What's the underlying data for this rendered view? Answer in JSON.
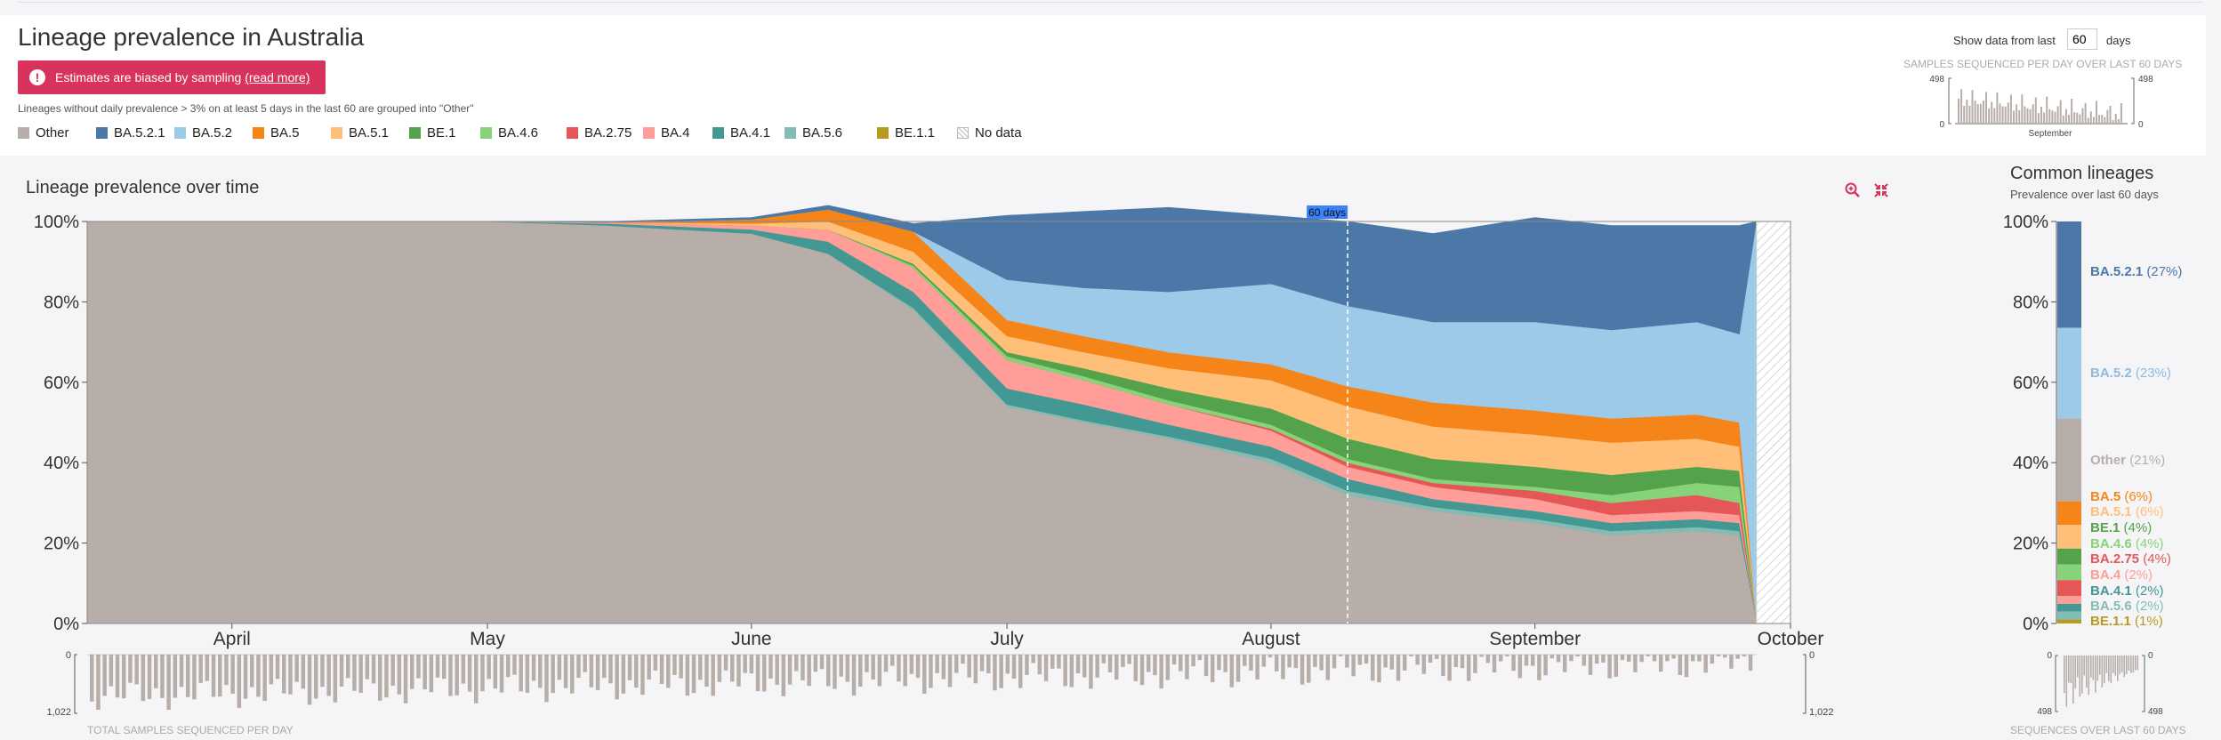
{
  "header": {
    "title": "Lineage prevalence in Australia",
    "bias_text": "Estimates are biased by sampling",
    "bias_link": "(read more)",
    "grouping_note": "Lineages without daily prevalence > 3% on at least 5 days in the last 60 are grouped into \"Other\"",
    "window_prefix": "Show data from last",
    "window_value": "60",
    "window_suffix": "days",
    "spark_title": "SAMPLES SEQUENCED PER DAY OVER LAST 60 DAYS",
    "spark_month": "September",
    "spark_max": "498",
    "spark_min": "0"
  },
  "legend": [
    {
      "label": "Other",
      "color": "#b8aea9"
    },
    {
      "label": "BA.5.2.1",
      "color": "#4c78a8"
    },
    {
      "label": "BA.5.2",
      "color": "#9ecae9"
    },
    {
      "label": "BA.5",
      "color": "#f58518"
    },
    {
      "label": "BA.5.1",
      "color": "#ffbf79"
    },
    {
      "label": "BE.1",
      "color": "#54a24b"
    },
    {
      "label": "BA.4.6",
      "color": "#88d27a"
    },
    {
      "label": "BA.2.75",
      "color": "#e45756"
    },
    {
      "label": "BA.4",
      "color": "#ff9d98"
    },
    {
      "label": "BA.4.1",
      "color": "#439894"
    },
    {
      "label": "BA.5.6",
      "color": "#83bcb6"
    },
    {
      "label": "BE.1.1",
      "color": "#b79a20"
    },
    {
      "label": "No data",
      "color": "hatch"
    }
  ],
  "main": {
    "section_title": "Lineage prevalence over time",
    "zoom_icon": "zoom-in-icon",
    "reset_icon": "collapse-icon",
    "window_label": "60 days",
    "y_ticks": [
      "0%",
      "20%",
      "40%",
      "60%",
      "80%",
      "100%"
    ],
    "x_ticks": [
      "April",
      "May",
      "June",
      "July",
      "August",
      "September",
      "October"
    ],
    "samples_max": "1,022",
    "samples_min": "0",
    "samples_label": "TOTAL SAMPLES SEQUENCED PER DAY"
  },
  "common": {
    "title": "Common lineages",
    "subtitle": "Prevalence over last 60 days",
    "y_ticks": [
      "0%",
      "20%",
      "40%",
      "60%",
      "80%",
      "100%"
    ],
    "bottom_label": "SEQUENCES OVER LAST 60 DAYS",
    "spark_max": "498",
    "spark_min": "0"
  },
  "chart_data": [
    {
      "type": "area",
      "title": "Lineage prevalence over time",
      "x_unit": "date (2022)",
      "ylim": [
        0,
        100
      ],
      "x": [
        "Mar 15",
        "Apr 1",
        "Apr 15",
        "May 1",
        "May 15",
        "Jun 1",
        "Jun 10",
        "Jun 20",
        "Jul 1",
        "Jul 10",
        "Jul 20",
        "Aug 1",
        "Aug 10",
        "Aug 20",
        "Sep 1",
        "Sep 10",
        "Sep 20",
        "Sep 25",
        "Sep 27"
      ],
      "series": [
        {
          "name": "Other",
          "values": [
            100,
            100,
            100,
            100,
            99,
            97,
            92,
            78,
            54,
            50,
            46,
            40,
            32,
            28,
            25,
            22,
            23,
            22,
            1
          ]
        },
        {
          "name": "BE.1.1",
          "values": [
            0,
            0,
            0,
            0,
            0,
            0,
            0,
            0,
            0,
            0,
            0,
            0,
            0,
            0,
            0,
            0,
            0,
            0,
            0
          ]
        },
        {
          "name": "BA.5.6",
          "values": [
            0,
            0,
            0,
            0,
            0,
            0,
            0,
            0.5,
            0.5,
            0.5,
            0.5,
            1,
            1,
            1,
            1,
            1,
            1,
            1,
            0
          ]
        },
        {
          "name": "BA.4.1",
          "values": [
            0,
            0,
            0,
            0,
            0.5,
            1,
            3,
            4,
            4,
            4,
            3,
            3,
            3,
            2,
            2,
            2,
            2,
            2,
            0
          ]
        },
        {
          "name": "BA.4",
          "values": [
            0,
            0,
            0,
            0,
            0.3,
            1,
            3,
            6,
            7,
            6,
            5,
            4,
            3,
            3,
            3,
            2,
            2,
            2,
            0
          ]
        },
        {
          "name": "BA.2.75",
          "values": [
            0,
            0,
            0,
            0,
            0,
            0,
            0,
            0,
            0,
            0,
            0,
            0.5,
            1,
            1,
            2,
            3,
            4,
            3,
            0
          ]
        },
        {
          "name": "BA.4.6",
          "values": [
            0,
            0,
            0,
            0,
            0,
            0,
            0,
            0.5,
            1,
            1,
            1,
            1,
            1,
            1,
            1,
            2,
            3,
            4,
            0
          ]
        },
        {
          "name": "BE.1",
          "values": [
            0,
            0,
            0,
            0,
            0,
            0,
            0,
            0.5,
            1,
            2,
            3,
            4,
            5,
            5,
            5,
            5,
            4,
            4,
            0
          ]
        },
        {
          "name": "BA.5.1",
          "values": [
            0,
            0,
            0,
            0,
            0,
            0.5,
            2,
            3,
            4,
            4,
            5,
            7,
            8,
            8,
            8,
            8,
            7,
            6,
            0
          ]
        },
        {
          "name": "BA.5",
          "values": [
            0,
            0,
            0,
            0,
            0,
            1,
            3,
            5,
            4,
            4,
            4,
            4,
            5,
            6,
            6,
            6,
            6,
            6,
            0
          ]
        },
        {
          "name": "BA.5.2",
          "values": [
            0,
            0,
            0,
            0,
            0,
            0,
            0,
            0,
            10,
            12,
            15,
            20,
            20,
            20,
            22,
            22,
            23,
            22,
            99
          ]
        },
        {
          "name": "BA.5.2.1",
          "values": [
            0,
            0,
            0,
            0,
            0.2,
            0.5,
            1,
            2,
            16,
            19,
            21,
            17,
            21,
            22,
            26,
            26,
            24,
            27,
            0
          ]
        },
        {
          "name": "No data",
          "values": [
            0,
            0,
            0,
            0,
            0,
            0,
            0,
            0,
            0,
            0,
            0,
            0,
            0,
            0,
            0,
            0,
            0,
            0,
            0
          ]
        }
      ]
    },
    {
      "type": "bar",
      "title": "Common lineages",
      "subtitle": "Prevalence over last 60 days",
      "ylim": [
        0,
        100
      ],
      "categories": [
        "BA.5.2.1",
        "BA.5.2",
        "Other",
        "BA.5",
        "BA.5.1",
        "BE.1",
        "BA.4.6",
        "BA.2.75",
        "BA.4",
        "BA.4.1",
        "BA.5.6",
        "BE.1.1"
      ],
      "values": [
        27,
        23,
        21,
        6,
        6,
        4,
        4,
        4,
        2,
        2,
        2,
        1
      ],
      "labels": [
        "BA.5.2.1 (27%)",
        "BA.5.2 (23%)",
        "Other (21%)",
        "BA.5 (6%)",
        "BA.5.1 (6%)",
        "BE.1 (4%)",
        "BA.4.6 (4%)",
        "BA.2.75 (4%)",
        "BA.4 (2%)",
        "BA.4.1 (2%)",
        "BA.5.6 (2%)",
        "BE.1.1 (1%)"
      ],
      "colors": [
        "#4c78a8",
        "#9ecae9",
        "#b8aea9",
        "#f58518",
        "#ffbf79",
        "#54a24b",
        "#88d27a",
        "#e45756",
        "#ff9d98",
        "#439894",
        "#83bcb6",
        "#b79a20"
      ]
    }
  ]
}
